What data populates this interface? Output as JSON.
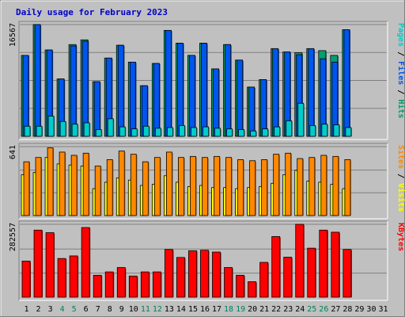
{
  "chart_data": {
    "type": "bar",
    "title": "Daily usage for February 2023",
    "categories": [
      "1",
      "2",
      "3",
      "4",
      "5",
      "6",
      "7",
      "8",
      "9",
      "10",
      "11",
      "12",
      "13",
      "14",
      "15",
      "16",
      "17",
      "18",
      "19",
      "20",
      "21",
      "22",
      "23",
      "24",
      "25",
      "26",
      "27",
      "28",
      "29",
      "30",
      "31"
    ],
    "weekend_days": [
      4,
      5,
      11,
      12,
      18,
      19,
      25,
      26
    ],
    "panels": [
      {
        "name": "top",
        "max_label": "16567",
        "max": 16567,
        "labels": [
          {
            "text": "Pages",
            "color": "#00cccc"
          },
          {
            "text": "Files",
            "color": "#0055ee"
          },
          {
            "text": "Hits",
            "color": "#009966"
          }
        ],
        "series": [
          {
            "name": "Hits",
            "color": "#00a070",
            "values": [
              12000,
              16567,
              12800,
              8500,
              13600,
              14300,
              8100,
              11600,
              13500,
              11000,
              7500,
              10800,
              15700,
              13800,
              12000,
              13800,
              10000,
              13600,
              11300,
              7300,
              8400,
              13000,
              12500,
              12400,
              13000,
              12700,
              12000,
              15800
            ]
          },
          {
            "name": "Files",
            "color": "#0055ee",
            "values": [
              12000,
              16567,
              12800,
              8500,
              13400,
              14100,
              8100,
              11600,
              13500,
              11000,
              7500,
              10800,
              15700,
              13800,
              12000,
              13800,
              10000,
              13600,
              11300,
              7300,
              8400,
              13000,
              12500,
              12100,
              13000,
              11500,
              11000,
              15800
            ]
          },
          {
            "name": "Pages",
            "color": "#00cccc",
            "values": [
              1500,
              1500,
              3000,
              2200,
              1800,
              2000,
              1000,
              2600,
              1400,
              1100,
              1500,
              1200,
              1300,
              1600,
              1300,
              1400,
              1200,
              1100,
              1000,
              800,
              1100,
              1400,
              2300,
              4900,
              1600,
              1800,
              1700,
              1300
            ]
          }
        ]
      },
      {
        "name": "middle",
        "max_label": "641",
        "max": 641,
        "labels": [
          {
            "text": "Sites",
            "color": "#ff8800"
          },
          {
            "text": "Visits",
            "color": "#ffff00"
          }
        ],
        "series": [
          {
            "name": "Visits",
            "color": "#ffff00",
            "values": [
              380,
              400,
              540,
              480,
              470,
              460,
              250,
              310,
              350,
              330,
              280,
              290,
              370,
              310,
              270,
              280,
              260,
              260,
              250,
              260,
              270,
              300,
              380,
              420,
              320,
              310,
              290,
              250
            ]
          },
          {
            "name": "Sites",
            "color": "#ff8800",
            "values": [
              500,
              540,
              630,
              590,
              560,
              580,
              460,
              520,
              600,
              570,
              500,
              540,
              590,
              540,
              550,
              540,
              550,
              540,
              520,
              510,
              520,
              570,
              580,
              530,
              540,
              560,
              550,
              520
            ]
          }
        ]
      },
      {
        "name": "bottom",
        "max_label": "282557",
        "max": 282557,
        "labels": [
          {
            "text": "KBytes",
            "color": "#ff0000"
          }
        ],
        "series": [
          {
            "name": "KBytes",
            "color": "#ff0000",
            "values": [
              140000,
              260000,
              250000,
              150000,
              160000,
              270000,
              85000,
              98000,
              115000,
              82000,
              98000,
              98000,
              185000,
              154000,
              180000,
              182000,
              175000,
              115000,
              85000,
              60000,
              135000,
              235000,
              155000,
              282557,
              190000,
              260000,
              252000,
              185000
            ]
          }
        ]
      }
    ]
  }
}
